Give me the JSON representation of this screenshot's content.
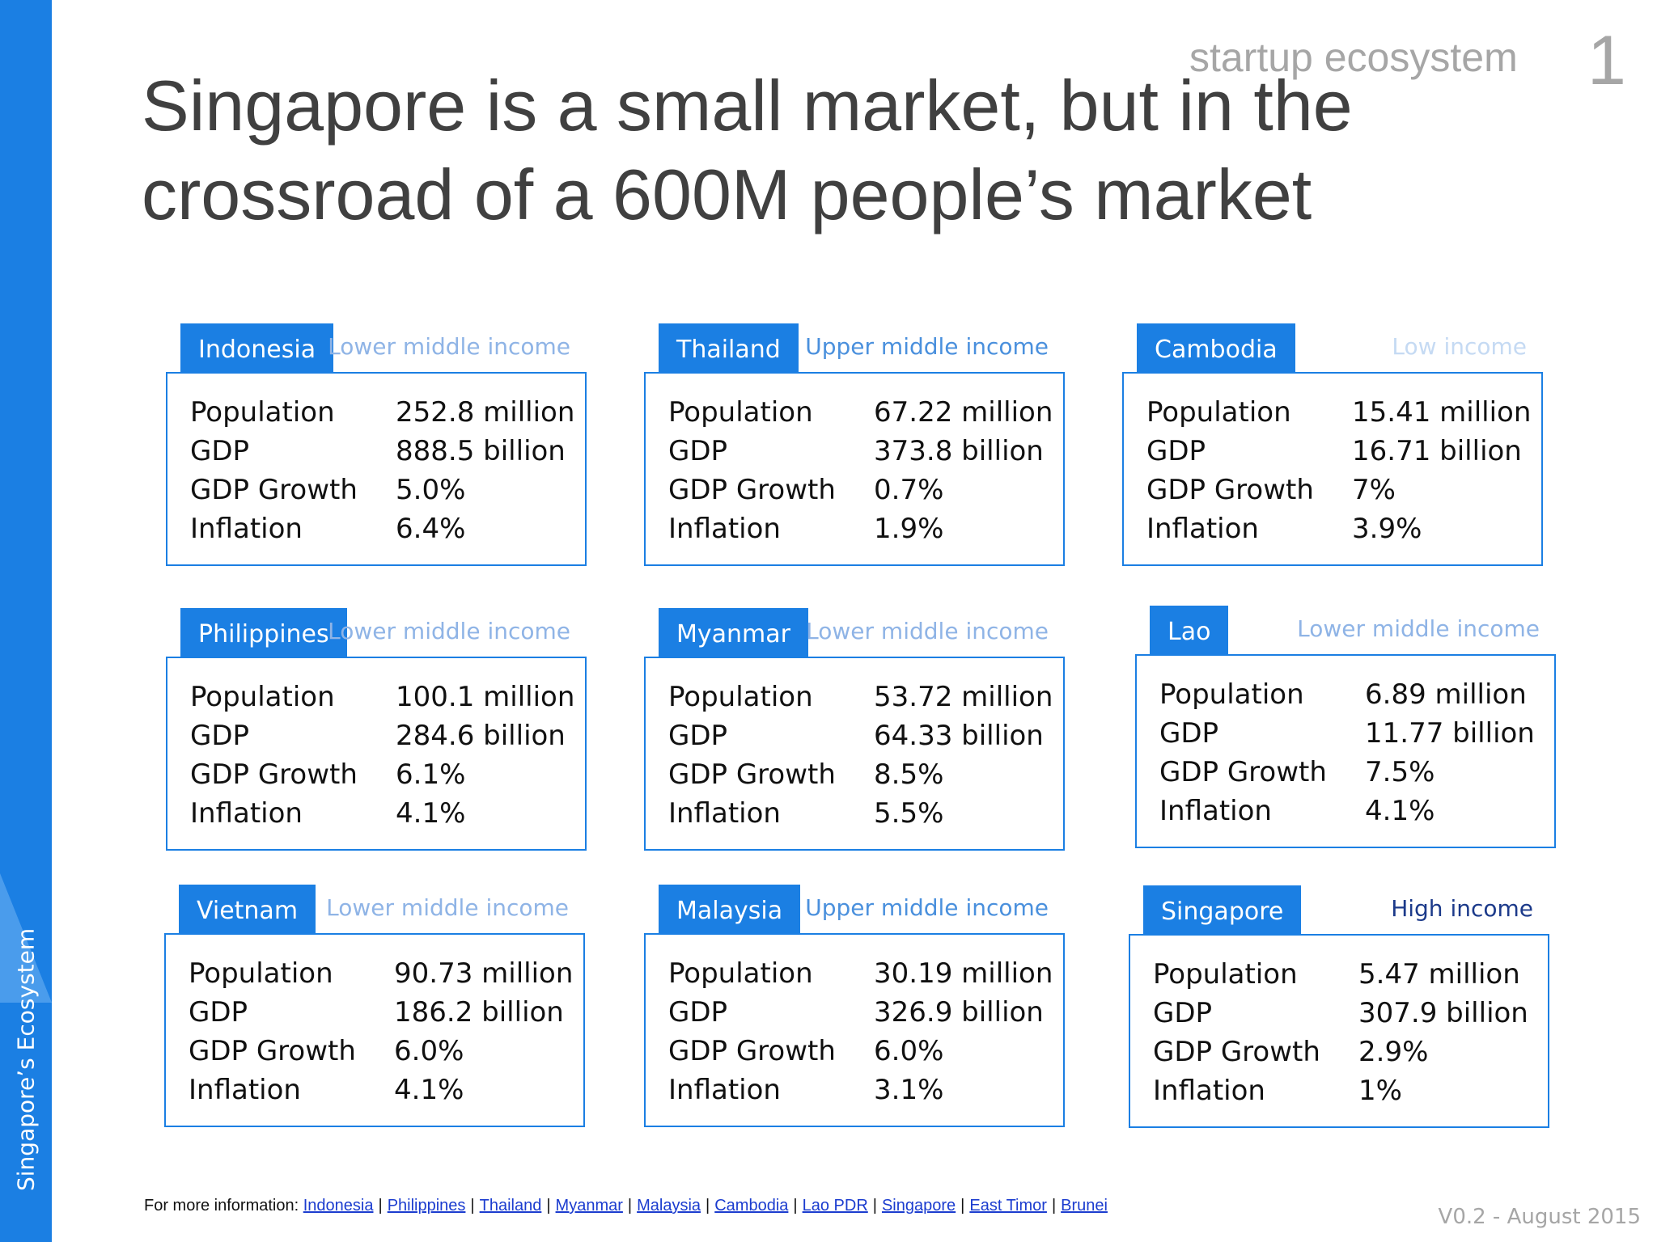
{
  "sidebar": {
    "label": "Singapore’s Ecosystem"
  },
  "header": {
    "topic": "startup ecosystem",
    "page_number": "1"
  },
  "title": {
    "line1": "Singapore is a small market, but in the",
    "line2": "crossroad of a 600M people’s market"
  },
  "colors": {
    "accent": "#1b7fe3",
    "text": "#404040",
    "muted": "#a6a6a6"
  },
  "cards": [
    {
      "country": "Indonesia",
      "income": "Lower middle income",
      "income_color": "#8fb4e6",
      "rows": [
        {
          "label": "Population",
          "value": "252.8 million"
        },
        {
          "label": "GDP",
          "value": "888.5 billion"
        },
        {
          "label": "GDP Growth",
          "value": "5.0%"
        },
        {
          "label": "Inflation",
          "value": "6.4%"
        }
      ]
    },
    {
      "country": "Thailand",
      "income": "Upper middle income",
      "income_color": "#4a90dd",
      "rows": [
        {
          "label": "Population",
          "value": "67.22 million"
        },
        {
          "label": "GDP",
          "value": "373.8 billion"
        },
        {
          "label": "GDP Growth",
          "value": "0.7%"
        },
        {
          "label": "Inflation",
          "value": "1.9%"
        }
      ]
    },
    {
      "country": "Cambodia",
      "income": "Low income",
      "income_color": "#c5daf3",
      "rows": [
        {
          "label": "Population",
          "value": "15.41 million"
        },
        {
          "label": "GDP",
          "value": "16.71 billion"
        },
        {
          "label": "GDP Growth",
          "value": "7%"
        },
        {
          "label": "Inflation",
          "value": "3.9%"
        }
      ]
    },
    {
      "country": "Philippines",
      "income": "Lower middle income",
      "income_color": "#8fb4e6",
      "rows": [
        {
          "label": "Population",
          "value": "100.1 million"
        },
        {
          "label": "GDP",
          "value": "284.6 billion"
        },
        {
          "label": "GDP Growth",
          "value": "6.1%"
        },
        {
          "label": "Inflation",
          "value": "4.1%"
        }
      ]
    },
    {
      "country": "Myanmar",
      "income": "Lower middle income",
      "income_color": "#8fb4e6",
      "rows": [
        {
          "label": "Population",
          "value": "53.72 million"
        },
        {
          "label": "GDP",
          "value": "64.33 billion"
        },
        {
          "label": "GDP Growth",
          "value": "8.5%"
        },
        {
          "label": "Inflation",
          "value": "5.5%"
        }
      ]
    },
    {
      "country": "Lao",
      "income": "Lower middle income",
      "income_color": "#8fb4e6",
      "rows": [
        {
          "label": "Population",
          "value": "6.89 million"
        },
        {
          "label": "GDP",
          "value": "11.77 billion"
        },
        {
          "label": "GDP Growth",
          "value": "7.5%"
        },
        {
          "label": "Inflation",
          "value": "4.1%"
        }
      ]
    },
    {
      "country": "Vietnam",
      "income": "Lower middle income",
      "income_color": "#8fb4e6",
      "rows": [
        {
          "label": "Population",
          "value": "90.73 million"
        },
        {
          "label": "GDP",
          "value": "186.2 billion"
        },
        {
          "label": "GDP Growth",
          "value": "6.0%"
        },
        {
          "label": "Inflation",
          "value": "4.1%"
        }
      ]
    },
    {
      "country": "Malaysia",
      "income": "Upper middle income",
      "income_color": "#4a90dd",
      "rows": [
        {
          "label": "Population",
          "value": "30.19 million"
        },
        {
          "label": "GDP",
          "value": "326.9 billion"
        },
        {
          "label": "GDP Growth",
          "value": "6.0%"
        },
        {
          "label": "Inflation",
          "value": "3.1%"
        }
      ]
    },
    {
      "country": "Singapore",
      "income": "High income",
      "income_color": "#1c3a8a",
      "rows": [
        {
          "label": "Population",
          "value": "5.47 million"
        },
        {
          "label": "GDP",
          "value": "307.9 billion"
        },
        {
          "label": "GDP Growth",
          "value": "2.9%"
        },
        {
          "label": "Inflation",
          "value": "1%"
        }
      ]
    }
  ],
  "footer": {
    "prefix": "For more information: ",
    "links": [
      "Indonesia",
      "Philippines",
      "Thailand",
      "Myanmar",
      "Malaysia",
      "Cambodia",
      "Lao PDR",
      "Singapore",
      "East Timor",
      "Brunei"
    ]
  },
  "version": "V0.2 - August 2015"
}
